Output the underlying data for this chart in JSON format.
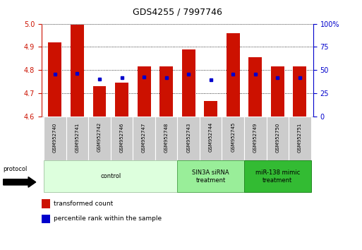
{
  "title": "GDS4255 / 7997746",
  "samples": [
    "GSM952740",
    "GSM952741",
    "GSM952742",
    "GSM952746",
    "GSM952747",
    "GSM952748",
    "GSM952743",
    "GSM952744",
    "GSM952745",
    "GSM952749",
    "GSM952750",
    "GSM952751"
  ],
  "red_values": [
    4.92,
    4.995,
    4.73,
    4.745,
    4.815,
    4.815,
    4.89,
    4.665,
    4.96,
    4.855,
    4.815,
    4.815
  ],
  "blue_values": [
    4.783,
    4.784,
    4.762,
    4.768,
    4.77,
    4.768,
    4.783,
    4.758,
    4.783,
    4.783,
    4.768,
    4.768
  ],
  "y_min": 4.6,
  "y_max": 5.0,
  "y_ticks_left": [
    4.6,
    4.7,
    4.8,
    4.9,
    5.0
  ],
  "y_ticks_right_vals": [
    0,
    25,
    50,
    75,
    100
  ],
  "y_ticks_right_labels": [
    "0",
    "25",
    "50",
    "75",
    "100%"
  ],
  "bar_width": 0.6,
  "bar_color": "#cc1100",
  "dot_color": "#0000cc",
  "group_data": [
    {
      "start": 0,
      "end": 5,
      "label": "control",
      "fc": "#ddffdd",
      "ec": "#aaccaa"
    },
    {
      "start": 6,
      "end": 8,
      "label": "SIN3A siRNA\ntreatment",
      "fc": "#99ee99",
      "ec": "#55aa55"
    },
    {
      "start": 9,
      "end": 11,
      "label": "miR-138 mimic\ntreatment",
      "fc": "#33bb33",
      "ec": "#228822"
    }
  ],
  "legend_labels": [
    "transformed count",
    "percentile rank within the sample"
  ],
  "protocol_label": "protocol"
}
